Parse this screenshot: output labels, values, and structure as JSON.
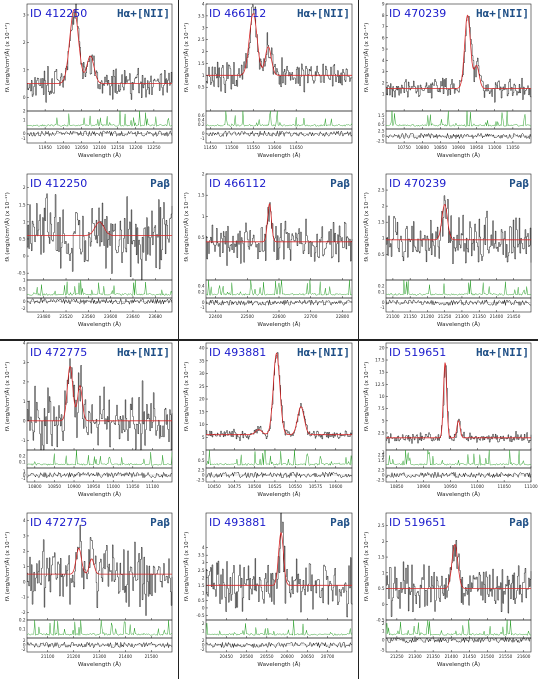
{
  "colors": {
    "data": "#000000",
    "model": "#d62728",
    "sky": "#2ca02c",
    "id": "#1a1acc",
    "line_label": "#1f4f86"
  },
  "xlabel": "Wavelength (Å)",
  "ylabel": "fλ (erg/s/cm²/Å) (x 10⁻¹⁷)",
  "chart_data": [
    {
      "type": "line",
      "id_label": "ID 412250",
      "line_label": "Hα+[NII]",
      "xlim": [
        11900,
        12300
      ],
      "xticks": [
        11950,
        12000,
        12050,
        12100,
        12150,
        12200,
        12250
      ],
      "ylim": [
        -0.5,
        3.4
      ],
      "yticks": [
        0,
        1,
        2,
        3
      ],
      "continuum": 0.5,
      "peaks": [
        {
          "x": 12030,
          "amp": 2.7,
          "sigma": 12
        },
        {
          "x": 12075,
          "amp": 1.0,
          "sigma": 10
        }
      ],
      "noise": 0.25,
      "sky_ylim": [
        0,
        2
      ],
      "sky_yticks": [
        1,
        2
      ],
      "res_yticks": [
        -1,
        0
      ]
    },
    {
      "type": "line",
      "id_label": "ID 466112",
      "line_label": "Hα+[NII]",
      "xlim": [
        11440,
        11780
      ],
      "xticks": [
        11450,
        11500,
        11550,
        11600,
        11650
      ],
      "ylim": [
        -0.5,
        4.0
      ],
      "yticks": [
        0.5,
        1.0,
        1.5,
        2.0,
        2.5,
        3.0,
        3.5,
        4.0
      ],
      "continuum": 1.0,
      "peaks": [
        {
          "x": 11550,
          "amp": 2.6,
          "sigma": 9
        },
        {
          "x": 11585,
          "amp": 1.2,
          "sigma": 7
        }
      ],
      "noise": 0.3,
      "sky_ylim": [
        0,
        0.8
      ],
      "sky_yticks": [
        0.2,
        0.4,
        0.6
      ],
      "res_yticks": [
        -1,
        0
      ]
    },
    {
      "type": "line",
      "id_label": "ID 470239",
      "line_label": "Hα+[NII]",
      "xlim": [
        10700,
        11100
      ],
      "xticks": [
        10750,
        10800,
        10850,
        10900,
        10950,
        11000,
        11050
      ],
      "ylim": [
        -0.5,
        9.0
      ],
      "yticks": [
        1,
        2,
        3,
        4,
        5,
        6,
        7,
        8,
        9
      ],
      "continuum": 1.5,
      "peaks": [
        {
          "x": 10925,
          "amp": 6.5,
          "sigma": 8
        },
        {
          "x": 10950,
          "amp": 2.0,
          "sigma": 7
        }
      ],
      "noise": 0.45,
      "sky_ylim": [
        0,
        2.0
      ],
      "sky_yticks": [
        0.5,
        1.0,
        1.5
      ],
      "res_yticks": [
        -2.5,
        0,
        2.5
      ]
    },
    {
      "type": "line",
      "id_label": "ID 412250",
      "line_label": "Paβ",
      "xlim": [
        23450,
        23710
      ],
      "xticks": [
        23480,
        23520,
        23560,
        23600,
        23640,
        23680
      ],
      "ylim": [
        -0.7,
        2.4
      ],
      "yticks": [
        -0.5,
        0,
        0.5,
        1.0,
        1.5,
        2.0
      ],
      "continuum": 0.6,
      "peaks": [
        {
          "x": 23580,
          "amp": 0.4,
          "sigma": 8
        }
      ],
      "noise": 0.55,
      "sky_ylim": [
        0,
        1.0
      ],
      "sky_yticks": [
        0.5,
        1.0
      ],
      "res_yticks": [
        -2,
        0
      ]
    },
    {
      "type": "line",
      "id_label": "ID 466112",
      "line_label": "Paβ",
      "xlim": [
        22370,
        22830
      ],
      "xticks": [
        22400,
        22500,
        22600,
        22700,
        22800
      ],
      "ylim": [
        -0.5,
        2.0
      ],
      "yticks": [
        0.5,
        1.0,
        1.5,
        2.0
      ],
      "continuum": 0.4,
      "peaks": [
        {
          "x": 22570,
          "amp": 0.9,
          "sigma": 6
        }
      ],
      "noise": 0.25,
      "sky_ylim": [
        0,
        0.6
      ],
      "sky_yticks": [
        0.2,
        0.4
      ],
      "res_yticks": [
        -1,
        0
      ]
    },
    {
      "type": "line",
      "id_label": "ID 470239",
      "line_label": "Paβ",
      "xlim": [
        21080,
        21500
      ],
      "xticks": [
        21100,
        21150,
        21200,
        21250,
        21300,
        21350,
        21400,
        21450
      ],
      "ylim": [
        -0.3,
        3.0
      ],
      "yticks": [
        0.5,
        1.0,
        1.5,
        2.0,
        2.5
      ],
      "continuum": 0.95,
      "peaks": [
        {
          "x": 21250,
          "amp": 1.1,
          "sigma": 8
        }
      ],
      "noise": 0.35,
      "sky_ylim": [
        0,
        0.3
      ],
      "sky_yticks": [
        0.1,
        0.2
      ],
      "res_yticks": [
        -1,
        0
      ]
    },
    {
      "type": "line",
      "id_label": "ID 472775",
      "line_label": "Hα+[NII]",
      "xlim": [
        10780,
        11150
      ],
      "xticks": [
        10800,
        10850,
        10900,
        10950,
        11000,
        11050,
        11100
      ],
      "ylim": [
        -1.5,
        4.0
      ],
      "yticks": [
        -1,
        0,
        1,
        2,
        3,
        4
      ],
      "continuum": 0.0,
      "peaks": [
        {
          "x": 10890,
          "amp": 2.8,
          "sigma": 7
        },
        {
          "x": 10915,
          "amp": 1.8,
          "sigma": 6
        }
      ],
      "noise": 0.8,
      "sky_ylim": [
        0,
        0.3
      ],
      "sky_yticks": [
        0.1,
        0.2
      ],
      "res_yticks": [
        -1,
        0,
        1
      ]
    },
    {
      "type": "line",
      "id_label": "ID 493881",
      "line_label": "Hα+[NII]",
      "xlim": [
        10440,
        10620
      ],
      "xticks": [
        10450,
        10475,
        10500,
        10525,
        10550,
        10575,
        10600
      ],
      "ylim": [
        0,
        42
      ],
      "yticks": [
        5,
        10,
        15,
        20,
        25,
        30,
        35,
        40
      ],
      "continuum": 6,
      "peaks": [
        {
          "x": 10527,
          "amp": 32,
          "sigma": 4
        },
        {
          "x": 10557,
          "amp": 11,
          "sigma": 4
        },
        {
          "x": 10505,
          "amp": 2,
          "sigma": 4
        }
      ],
      "noise": 0.9,
      "sky_ylim": [
        0,
        1.2
      ],
      "sky_yticks": [
        0.5,
        1.0
      ],
      "res_yticks": [
        -2.5,
        0,
        2.5
      ]
    },
    {
      "type": "line",
      "id_label": "ID 519651",
      "line_label": "Hα+[NII]",
      "xlim": [
        10830,
        11100
      ],
      "xticks": [
        10850,
        10900,
        10950,
        11000,
        11050,
        11100
      ],
      "ylim": [
        -1,
        21
      ],
      "yticks": [
        2.5,
        5.0,
        7.5,
        10.0,
        12.5,
        15.0,
        17.5,
        20.0
      ],
      "continuum": 1.5,
      "peaks": [
        {
          "x": 10940,
          "amp": 15.5,
          "sigma": 3
        },
        {
          "x": 10965,
          "amp": 3.5,
          "sigma": 3
        }
      ],
      "noise": 0.5,
      "sky_ylim": [
        0,
        3.5
      ],
      "sky_yticks": [
        1.5,
        2.0,
        2.5,
        3.0
      ],
      "res_yticks": [
        -2.5,
        0,
        2.5
      ]
    },
    {
      "type": "line",
      "id_label": "ID 472775",
      "line_label": "Paβ",
      "xlim": [
        21020,
        21580
      ],
      "xticks": [
        21100,
        21200,
        21300,
        21400,
        21500
      ],
      "ylim": [
        -2.5,
        4.5
      ],
      "yticks": [
        -2,
        -1,
        0,
        1,
        2,
        3,
        4
      ],
      "continuum": 0.5,
      "peaks": [
        {
          "x": 21220,
          "amp": 1.7,
          "sigma": 10
        },
        {
          "x": 21270,
          "amp": 1.0,
          "sigma": 9
        }
      ],
      "noise": 1.0,
      "sky_ylim": [
        0,
        0.2
      ],
      "sky_yticks": [
        0.1,
        0.2
      ],
      "res_yticks": [
        -2,
        0,
        2
      ]
    },
    {
      "type": "line",
      "id_label": "ID 493881",
      "line_label": "Paβ",
      "xlim": [
        20400,
        20760
      ],
      "xticks": [
        20450,
        20500,
        20550,
        20600,
        20650,
        20700
      ],
      "ylim": [
        -0.8,
        6.3
      ],
      "yticks": [
        -0.5,
        0,
        0.5,
        1.0,
        1.5,
        2.0,
        2.5,
        3.0,
        3.5,
        4.0
      ],
      "continuum": 1.5,
      "peaks": [
        {
          "x": 20585,
          "amp": 3.5,
          "sigma": 6
        }
      ],
      "noise": 0.9,
      "sky_ylim": [
        0,
        2.5
      ],
      "sky_yticks": [
        1.0,
        2.0
      ],
      "res_yticks": [
        -2,
        0,
        2
      ]
    },
    {
      "type": "line",
      "id_label": "ID 519651",
      "line_label": "Paβ",
      "xlim": [
        21220,
        21620
      ],
      "xticks": [
        21250,
        21300,
        21350,
        21400,
        21450,
        21500,
        21550,
        21600
      ],
      "ylim": [
        -0.5,
        2.9
      ],
      "yticks": [
        -0.5,
        0,
        0.5,
        1.0,
        1.5,
        2.0,
        2.5
      ],
      "continuum": 0.5,
      "peaks": [
        {
          "x": 21410,
          "amp": 1.4,
          "sigma": 8
        }
      ],
      "noise": 0.35,
      "sky_ylim": [
        0,
        2.5
      ],
      "sky_yticks": [
        1,
        2
      ],
      "res_yticks": [
        -5,
        0
      ]
    }
  ]
}
